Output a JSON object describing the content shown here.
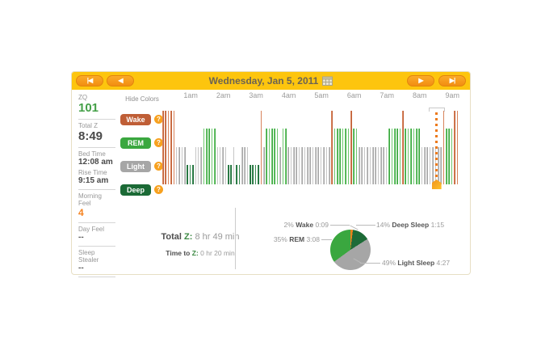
{
  "nav": {
    "date": "Wednesday, Jan 5, 2011",
    "first_glyph": "|◀",
    "prev_glyph": "◀",
    "next_glyph": "▶",
    "last_glyph": "▶|"
  },
  "sidebar": {
    "items": [
      {
        "key": "zq",
        "label": "ZQ",
        "value": "101"
      },
      {
        "key": "total-z",
        "label": "Total Z",
        "value": "8:49"
      },
      {
        "key": "bed-time",
        "label": "Bed Time",
        "value": "12:08 am"
      },
      {
        "key": "rise-time",
        "label": "Rise Time",
        "value": "9:15 am"
      },
      {
        "key": "morning-feel",
        "label": "Morning Feel",
        "value": "4"
      },
      {
        "key": "day-feel",
        "label": "Day Feel",
        "value": "--"
      },
      {
        "key": "sleep-stealer",
        "label": "Sleep Stealer",
        "value": "--"
      }
    ]
  },
  "legend": {
    "title": "Hide Colors",
    "help_glyph": "?",
    "items": [
      {
        "key": "wake",
        "label": "Wake",
        "color": "#bf5e36"
      },
      {
        "key": "rem",
        "label": "REM",
        "color": "#3aa73f"
      },
      {
        "key": "light",
        "label": "Light",
        "color": "#a6a6a6"
      },
      {
        "key": "deep",
        "label": "Deep",
        "color": "#1b6a36"
      }
    ]
  },
  "chart_data": {
    "type": "hypnogram+pie",
    "hypnogram": {
      "title": "Sleep stages by 5-minute epoch",
      "bed_time": "12:08 am",
      "rise_time": "9:15 am",
      "epoch_minutes": 5,
      "stages": {
        "W": {
          "name": "Wake",
          "color": "#bf5e36",
          "edge": "#d8835b",
          "height": 91
        },
        "R": {
          "name": "REM",
          "color": "#3aa73f",
          "edge": "#6fc770",
          "height": 69
        },
        "L": {
          "name": "Light",
          "color": "#a6a6a6",
          "edge": "#c6c6c6",
          "height": 46
        },
        "D": {
          "name": "Deep",
          "color": "#1b6a36",
          "edge": "#3a8a54",
          "height": 24
        }
      },
      "segments": [
        [
          "W",
          5
        ],
        [
          "L",
          4
        ],
        [
          "D",
          3
        ],
        [
          "L",
          3
        ],
        [
          "R",
          5
        ],
        [
          "L",
          4
        ],
        [
          "D",
          2
        ],
        [
          "L",
          1
        ],
        [
          "D",
          2
        ],
        [
          "L",
          3
        ],
        [
          "D",
          4
        ],
        [
          "W",
          1
        ],
        [
          "L",
          1
        ],
        [
          "R",
          5
        ],
        [
          "L",
          1
        ],
        [
          "R",
          2
        ],
        [
          "L",
          16
        ],
        [
          "W",
          1
        ],
        [
          "R",
          6
        ],
        [
          "W",
          1
        ],
        [
          "R",
          2
        ],
        [
          "L",
          11
        ],
        [
          "R",
          5
        ],
        [
          "W",
          1
        ],
        [
          "R",
          6
        ],
        [
          "L",
          8
        ],
        [
          "W",
          1
        ],
        [
          "R",
          3
        ],
        [
          "W",
          2
        ]
      ],
      "x_axis": {
        "labels": [
          "1am",
          "2am",
          "3am",
          "4am",
          "5am",
          "6am",
          "7am",
          "8am",
          "9am"
        ],
        "first_label_offset_min": 52,
        "label_interval_min": 60
      },
      "marker_epoch": 100
    },
    "pie": {
      "slices": [
        {
          "key": "wake",
          "name": "Wake",
          "pct": 2,
          "duration": "0:09",
          "color": "#e8821e"
        },
        {
          "key": "deep",
          "name": "Deep Sleep",
          "pct": 14,
          "duration": "1:15",
          "color": "#1d6b37"
        },
        {
          "key": "light",
          "name": "Light Sleep",
          "pct": 49,
          "duration": "4:27",
          "color": "#a6a6a6"
        },
        {
          "key": "rem",
          "name": "REM",
          "pct": 35,
          "duration": "3:08",
          "color": "#3aa73f"
        }
      ]
    }
  },
  "summary": {
    "total_prefix": "Total",
    "total_z": "Z:",
    "total_value": "8 hr 49 min",
    "ttz_prefix": "Time to",
    "ttz_z": "Z:",
    "ttz_value": "0 hr 20 min"
  }
}
